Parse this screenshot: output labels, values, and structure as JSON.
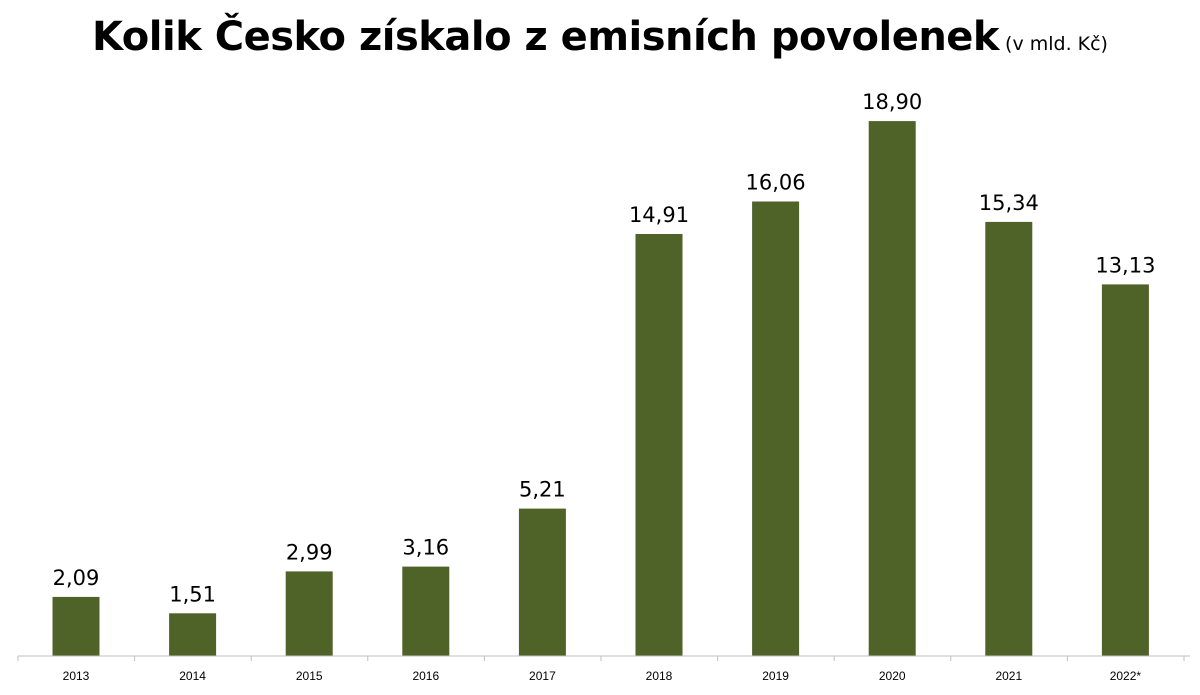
{
  "chart_data": {
    "type": "bar",
    "title": "Kolik Česko získalo z emisních povolenek",
    "subtitle": "(v mld. Kč)",
    "categories": [
      "2013",
      "2014",
      "2015",
      "2016",
      "2017",
      "2018",
      "2019",
      "2020",
      "2021",
      "2022*"
    ],
    "values": [
      2.09,
      1.51,
      2.99,
      3.16,
      5.21,
      14.91,
      16.06,
      18.9,
      15.34,
      13.13
    ],
    "value_labels": [
      "2,09",
      "1,51",
      "2,99",
      "3,16",
      "5,21",
      "14,91",
      "16,06",
      "18,90",
      "15,34",
      "13,13"
    ],
    "xlabel": "",
    "ylabel": "",
    "ylim": [
      0,
      22
    ],
    "grid": false,
    "legend": "none",
    "bar_color": "#4f6228"
  }
}
